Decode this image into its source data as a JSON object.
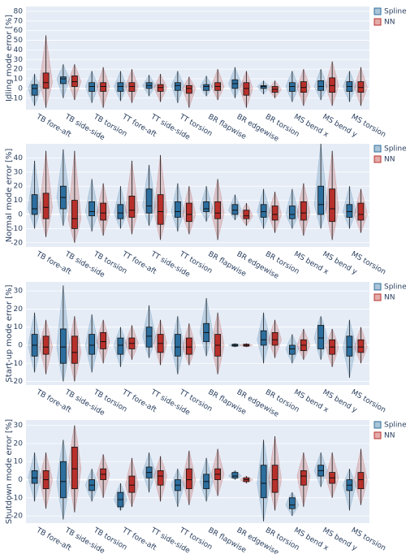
{
  "chart_data": [
    {
      "type": "box",
      "y_label": "Idling mode error [%]",
      "categories": [
        "TB fore-aft",
        "TB side-side",
        "TB torsion",
        "TT fore-aft",
        "TT side-side",
        "TT torsion",
        "BR flapwise",
        "BR edgewise",
        "BR torsion",
        "MS bend x",
        "MS bend y",
        "MS torsion"
      ],
      "series": [
        {
          "name": "Spline",
          "color": "#2c6e9e",
          "min": [
            -18,
            -10,
            -15,
            -13,
            -8,
            -15,
            -8,
            -10,
            -6,
            -14,
            -12,
            -14
          ],
          "q1": [
            -7,
            5,
            -3,
            -3,
            0,
            -2,
            -2,
            0,
            0,
            -3,
            -2,
            -3
          ],
          "median": [
            0,
            10,
            2,
            2,
            3,
            3,
            2,
            5,
            2,
            2,
            2,
            2
          ],
          "q3": [
            4,
            12,
            6,
            6,
            6,
            6,
            4,
            9,
            3,
            6,
            8,
            7
          ],
          "max": [
            15,
            25,
            18,
            18,
            14,
            18,
            13,
            22,
            8,
            18,
            20,
            18
          ]
        },
        {
          "name": "NN",
          "color": "#b8302b",
          "min": [
            -20,
            -12,
            -20,
            -15,
            -14,
            -20,
            -12,
            -20,
            -10,
            -18,
            -18,
            -18
          ],
          "q1": [
            0,
            2,
            -3,
            -3,
            -3,
            -5,
            -2,
            -7,
            -4,
            -4,
            -4,
            -4
          ],
          "median": [
            6,
            7,
            2,
            2,
            1,
            0,
            2,
            0,
            -1,
            1,
            3,
            1
          ],
          "q3": [
            16,
            13,
            6,
            6,
            4,
            3,
            6,
            6,
            2,
            7,
            11,
            7
          ],
          "max": [
            55,
            25,
            22,
            20,
            15,
            12,
            20,
            18,
            8,
            20,
            28,
            22
          ]
        }
      ],
      "ylim": [
        -22,
        85
      ],
      "yticks": [
        -10,
        0,
        10,
        20,
        30,
        40,
        50,
        60,
        70,
        80
      ],
      "legend": "right"
    },
    {
      "type": "box",
      "y_label": "Normal mode error [%]",
      "categories": [
        "TB fore-aft",
        "TB side-side",
        "TB torsion",
        "TT fore-aft",
        "TT side-side",
        "TT torsion",
        "BR flapwise",
        "BR edgewise",
        "BR torsion",
        "MS bend x",
        "MS bend y",
        "MS torsion"
      ],
      "series": [
        {
          "name": "Spline",
          "color": "#2c6e9e",
          "min": [
            -10,
            -8,
            -12,
            -10,
            -8,
            -12,
            -5,
            -4,
            -10,
            -10,
            -10,
            -10
          ],
          "q1": [
            0,
            4,
            -1,
            -3,
            1,
            -2,
            2,
            0,
            -2,
            -3,
            0,
            -2
          ],
          "median": [
            4,
            12,
            2,
            1,
            6,
            2,
            4,
            3,
            2,
            0,
            7,
            2
          ],
          "q3": [
            14,
            20,
            9,
            7,
            18,
            9,
            9,
            7,
            7,
            6,
            20,
            7
          ],
          "max": [
            38,
            46,
            25,
            20,
            35,
            22,
            20,
            14,
            18,
            18,
            50,
            20
          ]
        },
        {
          "name": "NN",
          "color": "#b8302b",
          "min": [
            -16,
            -20,
            -15,
            -14,
            -18,
            -14,
            -18,
            -8,
            -13,
            -15,
            -18,
            -13
          ],
          "q1": [
            -3,
            -10,
            -4,
            -2,
            -7,
            -5,
            -3,
            -3,
            -4,
            -4,
            -5,
            -4
          ],
          "median": [
            5,
            -3,
            1,
            3,
            2,
            0,
            1,
            -1,
            0,
            1,
            4,
            0
          ],
          "q3": [
            15,
            10,
            8,
            13,
            14,
            8,
            9,
            3,
            6,
            9,
            18,
            8
          ],
          "max": [
            45,
            45,
            22,
            38,
            42,
            20,
            25,
            8,
            16,
            22,
            45,
            18
          ]
        }
      ],
      "ylim": [
        -23,
        50
      ],
      "yticks": [
        -20,
        -10,
        0,
        10,
        20,
        30,
        40
      ],
      "legend": "right"
    },
    {
      "type": "box",
      "y_label": "Start-up mode error [%]",
      "categories": [
        "TB fore-aft",
        "TB side-side",
        "TB torsion",
        "TT fore-aft",
        "TT side-side",
        "TT torsion",
        "BR flapwise",
        "BR edgewise",
        "BR torsion",
        "MS bend x",
        "MS bend y",
        "MS torsion"
      ],
      "series": [
        {
          "name": "Spline",
          "color": "#2c6e9e",
          "min": [
            -15,
            -20,
            -15,
            -12,
            -7,
            -16,
            -6,
            -1,
            -10,
            -10,
            -8,
            -18
          ],
          "q1": [
            -6,
            -10,
            -5,
            -5,
            -1,
            -6,
            2,
            -0.5,
            0,
            -5,
            -2,
            -6
          ],
          "median": [
            0,
            -1,
            0,
            0,
            5,
            -1,
            7,
            0,
            3,
            -2,
            4,
            -1
          ],
          "q3": [
            6,
            9,
            6,
            4,
            10,
            6,
            12,
            0.5,
            8,
            0,
            11,
            5
          ],
          "max": [
            18,
            33,
            17,
            10,
            22,
            16,
            26,
            1,
            18,
            6,
            16,
            14
          ]
        },
        {
          "name": "NN",
          "color": "#b8302b",
          "min": [
            -16,
            -20,
            -10,
            -8,
            -11,
            -11,
            -16,
            -1,
            -7,
            -8,
            -12,
            -10
          ],
          "q1": [
            -5,
            -10,
            -2,
            -2,
            -4,
            -5,
            -6,
            -0.5,
            0,
            -3,
            -5,
            -4
          ],
          "median": [
            -1,
            -4,
            2,
            1,
            1,
            -1,
            0,
            0,
            3,
            0,
            -1,
            -1
          ],
          "q3": [
            5,
            5,
            7,
            4,
            6,
            4,
            6,
            0.5,
            7,
            3,
            3,
            3
          ],
          "max": [
            14,
            16,
            14,
            11,
            14,
            12,
            18,
            1,
            14,
            9,
            9,
            10
          ]
        }
      ],
      "ylim": [
        -22,
        35
      ],
      "yticks": [
        -20,
        -10,
        0,
        10,
        20,
        30
      ],
      "legend": "right"
    },
    {
      "type": "box",
      "y_label": "Shutdown mode error [%]",
      "categories": [
        "TB fore-aft",
        "TB side-side",
        "TB torsion",
        "TT fore-aft",
        "TT side-side",
        "TT torsion",
        "BR flapwise",
        "BR edgewise",
        "BR torsion",
        "MS bend x",
        "MS bend y",
        "MS torsion"
      ],
      "series": [
        {
          "name": "Spline",
          "color": "#2c6e9e",
          "min": [
            -12,
            -22,
            -12,
            -17,
            -7,
            -15,
            -12,
            0,
            -23,
            -20,
            -4,
            -17
          ],
          "q1": [
            -2,
            -10,
            -6,
            -15,
            1,
            -6,
            -5,
            1,
            -10,
            -16,
            2,
            -6
          ],
          "median": [
            1,
            -1,
            -3,
            -11,
            4,
            -3,
            -1,
            2,
            -2,
            -14,
            5,
            -3
          ],
          "q3": [
            5,
            10,
            0,
            -7,
            7,
            0,
            3,
            4,
            8,
            -10,
            8,
            0
          ],
          "max": [
            15,
            22,
            6,
            -2,
            15,
            6,
            12,
            5,
            22,
            -7,
            15,
            6
          ]
        },
        {
          "name": "NN",
          "color": "#b8302b",
          "min": [
            -16,
            -18,
            -10,
            -15,
            -12,
            -14,
            -9,
            -2,
            -17,
            -15,
            -10,
            -14
          ],
          "q1": [
            -5,
            -5,
            0,
            -7,
            -3,
            -5,
            0,
            -1,
            -7,
            -3,
            -2,
            -5
          ],
          "median": [
            0,
            6,
            3,
            -3,
            2,
            0,
            3,
            0,
            0,
            2,
            1,
            0
          ],
          "q3": [
            5,
            18,
            6,
            2,
            5,
            6,
            6,
            1,
            8,
            5,
            4,
            4
          ],
          "max": [
            15,
            30,
            14,
            12,
            13,
            16,
            17,
            2,
            24,
            15,
            15,
            17
          ]
        }
      ],
      "ylim": [
        -24,
        33
      ],
      "yticks": [
        -20,
        -10,
        0,
        10,
        20,
        30
      ],
      "legend": "right"
    }
  ]
}
